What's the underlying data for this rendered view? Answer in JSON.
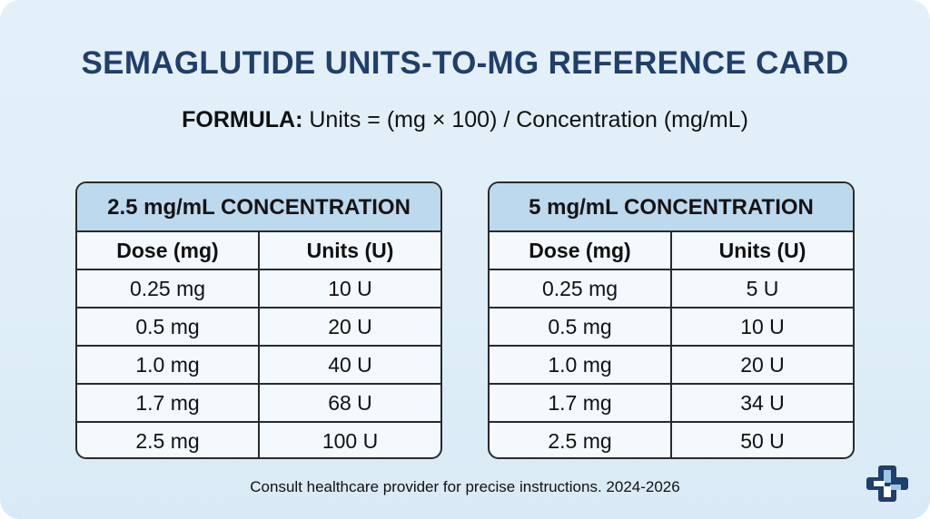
{
  "title": "SEMAGLUTIDE UNITS-TO-MG REFERENCE CARD",
  "formula": {
    "label": "FORMULA:",
    "text": " Units = (mg × 100) / Concentration (mg/mL)"
  },
  "tables": [
    {
      "heading": "2.5 mg/mL CONCENTRATION",
      "columns": [
        "Dose (mg)",
        "Units (U)"
      ],
      "rows": [
        [
          "0.25 mg",
          "10 U"
        ],
        [
          "0.5 mg",
          "20 U"
        ],
        [
          "1.0 mg",
          "40 U"
        ],
        [
          "1.7 mg",
          "68 U"
        ],
        [
          "2.5 mg",
          "100 U"
        ]
      ]
    },
    {
      "heading": "5 mg/mL CONCENTRATION",
      "columns": [
        "Dose (mg)",
        "Units (U)"
      ],
      "rows": [
        [
          "0.25 mg",
          "5 U"
        ],
        [
          "0.5 mg",
          "10 U"
        ],
        [
          "1.0 mg",
          "20 U"
        ],
        [
          "1.7 mg",
          "34 U"
        ],
        [
          "2.5 mg",
          "50 U"
        ]
      ]
    }
  ],
  "footer": "Consult healthcare provider for precise instructions. 2024-2026",
  "logo_icon": "medical-cross-icon",
  "colors": {
    "title": "#1f3f6c",
    "header_fill": "#bcd9ee",
    "background": "#e4f0f9",
    "logo_blue": "#1f3f6c",
    "logo_light": "#9cc8e6"
  }
}
